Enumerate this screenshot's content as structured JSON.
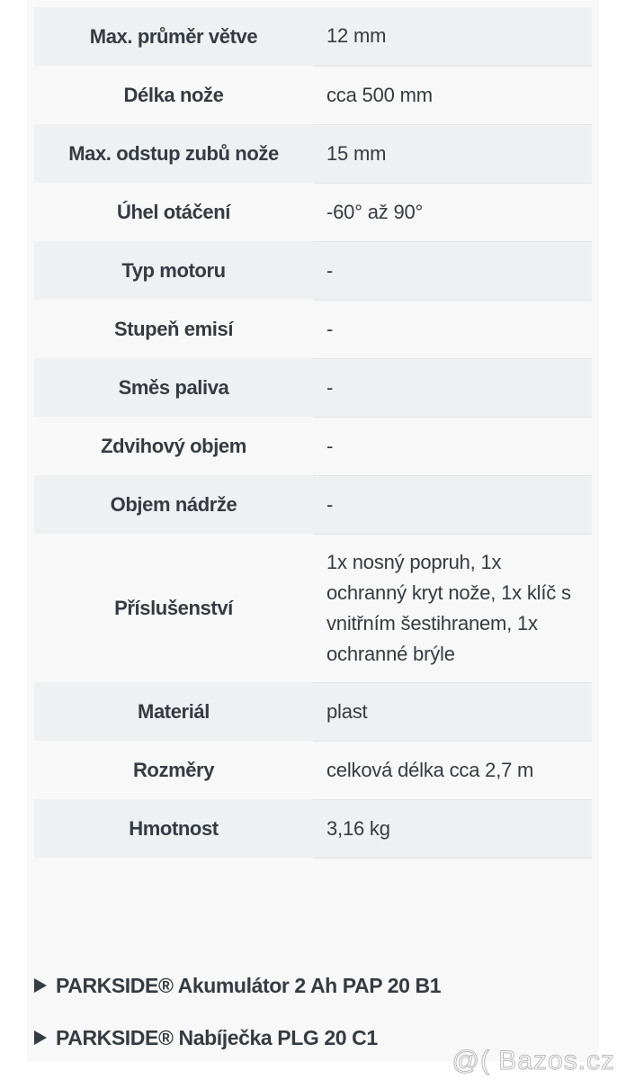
{
  "specs": [
    {
      "label": "Max. průměr větve",
      "value": "12 mm"
    },
    {
      "label": "Délka nože",
      "value": "cca 500 mm"
    },
    {
      "label": "Max. odstup zubů nože",
      "value": "15 mm"
    },
    {
      "label": "Úhel otáčení",
      "value": "-60° až 90°"
    },
    {
      "label": "Typ motoru",
      "value": "-"
    },
    {
      "label": "Stupeň emisí",
      "value": "-"
    },
    {
      "label": "Směs paliva",
      "value": "-"
    },
    {
      "label": "Zdvihový objem",
      "value": "-"
    },
    {
      "label": "Objem nádrže",
      "value": "-"
    },
    {
      "label": "Příslušenství",
      "value": "1x nosný popruh, 1x ochranný kryt nože, 1x klíč s vnitřním šestihranem, 1x ochranné brýle"
    },
    {
      "label": "Materiál",
      "value": "plast"
    },
    {
      "label": "Rozměry",
      "value": "celková délka cca 2,7 m"
    },
    {
      "label": "Hmotnost",
      "value": "3,16 kg"
    }
  ],
  "links": [
    {
      "label": "PARKSIDE® Akumulátor 2 Ah PAP 20 B1",
      "icon": "triangle-right-icon"
    },
    {
      "label": "PARKSIDE® Nabíječka PLG 20 C1",
      "icon": "triangle-right-icon"
    }
  ],
  "watermark": "@( Bazos.cz"
}
